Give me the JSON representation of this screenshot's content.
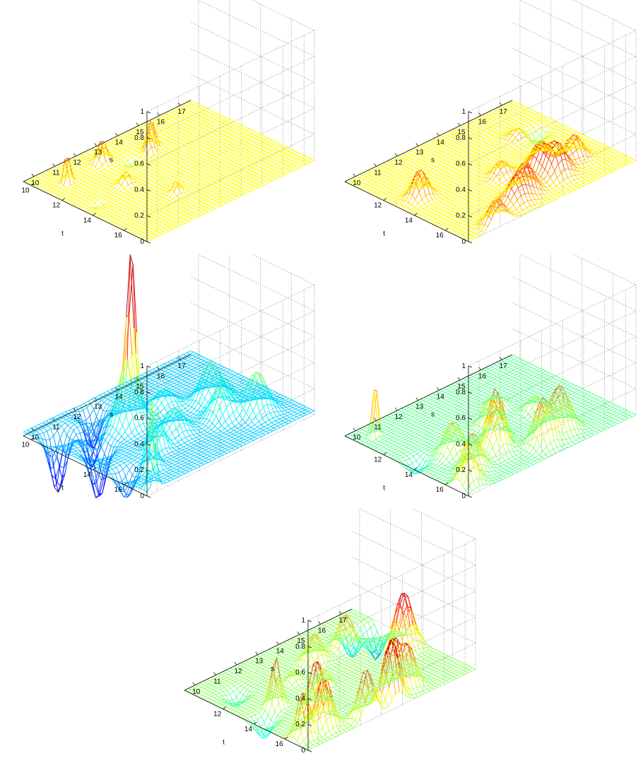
{
  "chart_data": [
    {
      "type": "surface",
      "xlabel": "s",
      "ylabel": "t",
      "zlabel": "",
      "xlim": [
        9.5,
        17.5
      ],
      "ylim": [
        9.5,
        17.5
      ],
      "zlim": [
        0,
        1
      ],
      "xticks": [
        "10",
        "11",
        "12",
        "13",
        "14",
        "15",
        "16",
        "17"
      ],
      "yticks": [
        "10",
        "12",
        "14",
        "16"
      ],
      "zticks": [
        "0",
        "0.2",
        "0.4",
        "0.6",
        "0.8",
        "1"
      ],
      "grid": true,
      "colormap": "jet",
      "baseline": 0,
      "peaks": [
        {
          "s": 10.5,
          "t": 11.0,
          "z": 0.26,
          "w": 0.12
        },
        {
          "s": 12.6,
          "t": 15.2,
          "z": 0.1,
          "w": 0.15
        },
        {
          "s": 11.8,
          "t": 13.0,
          "z": 0.1,
          "w": 0.2
        },
        {
          "s": 12.3,
          "t": 10.8,
          "z": 0.18,
          "w": 0.2
        },
        {
          "s": 13.9,
          "t": 11.7,
          "z": 0.12,
          "w": 0.15
        },
        {
          "s": 14.2,
          "t": 11.4,
          "z": 0.24,
          "w": 0.15
        },
        {
          "s": 13.1,
          "t": 11.6,
          "z": -0.05,
          "w": 0.2
        },
        {
          "s": 10.2,
          "t": 13.4,
          "z": -0.04,
          "w": 0.15
        }
      ]
    },
    {
      "type": "surface",
      "xlabel": "s",
      "ylabel": "t",
      "zlabel": "",
      "xlim": [
        9.5,
        17.5
      ],
      "ylim": [
        9.5,
        17.5
      ],
      "zlim": [
        0,
        1
      ],
      "xticks": [
        "10",
        "11",
        "12",
        "13",
        "14",
        "15",
        "16",
        "17"
      ],
      "yticks": [
        "12",
        "14",
        "16"
      ],
      "zticks": [
        "0",
        "0.2",
        "0.4",
        "0.6",
        "0.8",
        "1"
      ],
      "grid": true,
      "colormap": "jet",
      "baseline": 0,
      "peaks": [
        {
          "s": 11.0,
          "t": 17.3,
          "z": 0.2,
          "w": 0.35
        },
        {
          "s": 12.5,
          "t": 16.5,
          "z": 0.18,
          "w": 0.4
        },
        {
          "s": 10.5,
          "t": 13.0,
          "z": 0.22,
          "w": 0.3
        },
        {
          "s": 13.2,
          "t": 16.2,
          "z": 0.22,
          "w": 0.35
        },
        {
          "s": 14.8,
          "t": 16.0,
          "z": 0.26,
          "w": 0.4
        },
        {
          "s": 14.5,
          "t": 15.2,
          "z": 0.21,
          "w": 0.35
        },
        {
          "s": 16.0,
          "t": 15.5,
          "z": 0.2,
          "w": 0.35
        },
        {
          "s": 15.2,
          "t": 14.5,
          "z": 0.16,
          "w": 0.3
        },
        {
          "s": 13.5,
          "t": 14.2,
          "z": 0.12,
          "w": 0.3
        },
        {
          "s": 15.8,
          "t": 12.2,
          "z": 0.08,
          "w": 0.3
        },
        {
          "s": 16.5,
          "t": 12.4,
          "z": -0.1,
          "w": 0.3
        }
      ]
    },
    {
      "type": "surface",
      "xlabel": "s",
      "ylabel": "t",
      "zlabel": "",
      "xlim": [
        9.5,
        17.5
      ],
      "ylim": [
        9.5,
        17.5
      ],
      "zlim": [
        0,
        1
      ],
      "xticks": [
        "10",
        "11",
        "12",
        "13",
        "14",
        "15",
        "16",
        "17"
      ],
      "yticks": [
        "10",
        "14",
        "16"
      ],
      "zticks": [
        "0",
        "0.2",
        "0.4",
        "0.6",
        "0.8",
        "1"
      ],
      "grid": true,
      "colormap": "jet",
      "baseline": 0.03,
      "peaks": [
        {
          "s": 9.9,
          "t": 17.3,
          "z": 0.7,
          "w": 0.12
        },
        {
          "s": 10.8,
          "t": 16.0,
          "z": 0.4,
          "w": 0.2
        },
        {
          "s": 11.8,
          "t": 15.0,
          "z": 0.3,
          "w": 0.25
        },
        {
          "s": 12.6,
          "t": 12.3,
          "z": 1.1,
          "w": 0.15
        },
        {
          "s": 12.3,
          "t": 12.5,
          "z": 0.5,
          "w": 0.4
        },
        {
          "s": 13.0,
          "t": 14.5,
          "z": 0.2,
          "w": 0.4
        },
        {
          "s": 15.0,
          "t": 15.0,
          "z": 0.3,
          "w": 0.4
        },
        {
          "s": 16.0,
          "t": 15.8,
          "z": 0.32,
          "w": 0.4
        },
        {
          "s": 15.5,
          "t": 13.5,
          "z": 0.3,
          "w": 0.4
        },
        {
          "s": 14.0,
          "t": 12.5,
          "z": 0.15,
          "w": 0.4
        },
        {
          "s": 10.5,
          "t": 13.0,
          "z": -0.4,
          "w": 0.3
        },
        {
          "s": 10.2,
          "t": 10.8,
          "z": -0.45,
          "w": 0.3
        },
        {
          "s": 11.3,
          "t": 11.5,
          "z": -0.3,
          "w": 0.3
        },
        {
          "s": 12.2,
          "t": 10.3,
          "z": -0.3,
          "w": 0.3
        },
        {
          "s": 10.0,
          "t": 15.5,
          "z": -0.2,
          "w": 0.3
        }
      ]
    },
    {
      "type": "surface",
      "xlabel": "s",
      "ylabel": "t",
      "zlabel": "",
      "xlim": [
        9.5,
        17.5
      ],
      "ylim": [
        9.5,
        17.5
      ],
      "zlim": [
        0,
        1
      ],
      "xticks": [
        "10",
        "11",
        "12",
        "13",
        "14",
        "15",
        "16",
        "17"
      ],
      "yticks": [
        "12",
        "14",
        "16"
      ],
      "zticks": [
        "0",
        "0.2",
        "0.4",
        "0.6",
        "0.8",
        "1"
      ],
      "grid": true,
      "colormap": "jet",
      "baseline": 0,
      "peaks": [
        {
          "s": 10.0,
          "t": 16.8,
          "z": 0.25,
          "w": 0.35
        },
        {
          "s": 10.8,
          "t": 16.0,
          "z": 0.3,
          "w": 0.35
        },
        {
          "s": 12.3,
          "t": 15.5,
          "z": 0.33,
          "w": 0.35
        },
        {
          "s": 12.8,
          "t": 14.8,
          "z": 0.4,
          "w": 0.3
        },
        {
          "s": 13.8,
          "t": 16.5,
          "z": 0.35,
          "w": 0.35
        },
        {
          "s": 14.8,
          "t": 16.2,
          "z": 0.36,
          "w": 0.4
        },
        {
          "s": 13.5,
          "t": 13.5,
          "z": 0.22,
          "w": 0.3
        },
        {
          "s": 11.2,
          "t": 14.2,
          "z": 0.25,
          "w": 0.35
        },
        {
          "s": 15.2,
          "t": 14.0,
          "z": 0.12,
          "w": 0.3
        },
        {
          "s": 14.5,
          "t": 12.5,
          "z": 0.1,
          "w": 0.3
        },
        {
          "s": 10.2,
          "t": 10.5,
          "z": 0.55,
          "w": 0.1
        },
        {
          "s": 10.0,
          "t": 13.5,
          "z": -0.1,
          "w": 0.3
        }
      ]
    },
    {
      "type": "surface",
      "xlabel": "s",
      "ylabel": "t",
      "zlabel": "",
      "xlim": [
        9.5,
        17.5
      ],
      "ylim": [
        9.5,
        17.5
      ],
      "zlim": [
        0,
        1
      ],
      "xticks": [
        "10",
        "11",
        "12",
        "13",
        "14",
        "15",
        "16",
        "17"
      ],
      "yticks": [
        "12",
        "14",
        "16"
      ],
      "zticks": [
        "0",
        "0.2",
        "0.4",
        "0.6",
        "0.8",
        "1"
      ],
      "grid": true,
      "colormap": "jet",
      "baseline": 0,
      "peaks": [
        {
          "s": 10.0,
          "t": 16.5,
          "z": 0.36,
          "w": 0.25
        },
        {
          "s": 11.0,
          "t": 16.5,
          "z": 0.4,
          "w": 0.3
        },
        {
          "s": 11.6,
          "t": 15.2,
          "z": 0.4,
          "w": 0.3
        },
        {
          "s": 10.9,
          "t": 13.5,
          "z": 0.38,
          "w": 0.2
        },
        {
          "s": 12.5,
          "t": 17.2,
          "z": 0.38,
          "w": 0.3
        },
        {
          "s": 13.8,
          "t": 17.0,
          "z": 0.46,
          "w": 0.3
        },
        {
          "s": 14.3,
          "t": 16.5,
          "z": 0.4,
          "w": 0.3
        },
        {
          "s": 15.0,
          "t": 16.5,
          "z": 0.32,
          "w": 0.3
        },
        {
          "s": 16.8,
          "t": 13.8,
          "z": 0.44,
          "w": 0.35
        },
        {
          "s": 14.0,
          "t": 11.8,
          "z": 0.22,
          "w": 0.3
        },
        {
          "s": 15.5,
          "t": 11.8,
          "z": 0.25,
          "w": 0.3
        },
        {
          "s": 13.0,
          "t": 13.8,
          "z": 0.15,
          "w": 0.2
        },
        {
          "s": 12.5,
          "t": 12.5,
          "z": 0.1,
          "w": 0.2
        },
        {
          "s": 10.6,
          "t": 11.4,
          "z": -0.1,
          "w": 0.3
        },
        {
          "s": 10.0,
          "t": 14.0,
          "z": -0.15,
          "w": 0.3
        },
        {
          "s": 17.2,
          "t": 11.5,
          "z": -0.25,
          "w": 0.3
        },
        {
          "s": 16.4,
          "t": 11.0,
          "z": -0.2,
          "w": 0.3
        }
      ]
    }
  ]
}
